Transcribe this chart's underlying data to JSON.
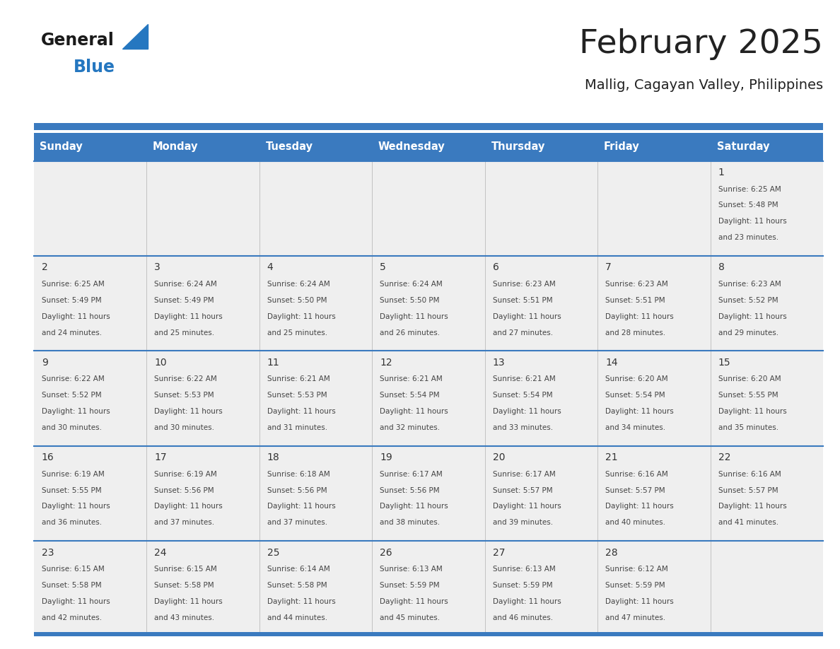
{
  "title": "February 2025",
  "subtitle": "Mallig, Cagayan Valley, Philippines",
  "days_of_week": [
    "Sunday",
    "Monday",
    "Tuesday",
    "Wednesday",
    "Thursday",
    "Friday",
    "Saturday"
  ],
  "header_bg": "#3a7abf",
  "header_text": "#ffffff",
  "row_bg": "#efefef",
  "cell_border_color": "#3a7abf",
  "day_number_color": "#333333",
  "text_color": "#444444",
  "title_color": "#222222",
  "subtitle_color": "#222222",
  "logo_general_color": "#1a1a1a",
  "logo_blue_color": "#2577c0",
  "calendar_data": [
    [
      null,
      null,
      null,
      null,
      null,
      null,
      {
        "day": 1,
        "sunrise": "6:25 AM",
        "sunset": "5:48 PM",
        "daylight": "11 hours and 23 minutes."
      }
    ],
    [
      {
        "day": 2,
        "sunrise": "6:25 AM",
        "sunset": "5:49 PM",
        "daylight": "11 hours and 24 minutes."
      },
      {
        "day": 3,
        "sunrise": "6:24 AM",
        "sunset": "5:49 PM",
        "daylight": "11 hours and 25 minutes."
      },
      {
        "day": 4,
        "sunrise": "6:24 AM",
        "sunset": "5:50 PM",
        "daylight": "11 hours and 25 minutes."
      },
      {
        "day": 5,
        "sunrise": "6:24 AM",
        "sunset": "5:50 PM",
        "daylight": "11 hours and 26 minutes."
      },
      {
        "day": 6,
        "sunrise": "6:23 AM",
        "sunset": "5:51 PM",
        "daylight": "11 hours and 27 minutes."
      },
      {
        "day": 7,
        "sunrise": "6:23 AM",
        "sunset": "5:51 PM",
        "daylight": "11 hours and 28 minutes."
      },
      {
        "day": 8,
        "sunrise": "6:23 AM",
        "sunset": "5:52 PM",
        "daylight": "11 hours and 29 minutes."
      }
    ],
    [
      {
        "day": 9,
        "sunrise": "6:22 AM",
        "sunset": "5:52 PM",
        "daylight": "11 hours and 30 minutes."
      },
      {
        "day": 10,
        "sunrise": "6:22 AM",
        "sunset": "5:53 PM",
        "daylight": "11 hours and 30 minutes."
      },
      {
        "day": 11,
        "sunrise": "6:21 AM",
        "sunset": "5:53 PM",
        "daylight": "11 hours and 31 minutes."
      },
      {
        "day": 12,
        "sunrise": "6:21 AM",
        "sunset": "5:54 PM",
        "daylight": "11 hours and 32 minutes."
      },
      {
        "day": 13,
        "sunrise": "6:21 AM",
        "sunset": "5:54 PM",
        "daylight": "11 hours and 33 minutes."
      },
      {
        "day": 14,
        "sunrise": "6:20 AM",
        "sunset": "5:54 PM",
        "daylight": "11 hours and 34 minutes."
      },
      {
        "day": 15,
        "sunrise": "6:20 AM",
        "sunset": "5:55 PM",
        "daylight": "11 hours and 35 minutes."
      }
    ],
    [
      {
        "day": 16,
        "sunrise": "6:19 AM",
        "sunset": "5:55 PM",
        "daylight": "11 hours and 36 minutes."
      },
      {
        "day": 17,
        "sunrise": "6:19 AM",
        "sunset": "5:56 PM",
        "daylight": "11 hours and 37 minutes."
      },
      {
        "day": 18,
        "sunrise": "6:18 AM",
        "sunset": "5:56 PM",
        "daylight": "11 hours and 37 minutes."
      },
      {
        "day": 19,
        "sunrise": "6:17 AM",
        "sunset": "5:56 PM",
        "daylight": "11 hours and 38 minutes."
      },
      {
        "day": 20,
        "sunrise": "6:17 AM",
        "sunset": "5:57 PM",
        "daylight": "11 hours and 39 minutes."
      },
      {
        "day": 21,
        "sunrise": "6:16 AM",
        "sunset": "5:57 PM",
        "daylight": "11 hours and 40 minutes."
      },
      {
        "day": 22,
        "sunrise": "6:16 AM",
        "sunset": "5:57 PM",
        "daylight": "11 hours and 41 minutes."
      }
    ],
    [
      {
        "day": 23,
        "sunrise": "6:15 AM",
        "sunset": "5:58 PM",
        "daylight": "11 hours and 42 minutes."
      },
      {
        "day": 24,
        "sunrise": "6:15 AM",
        "sunset": "5:58 PM",
        "daylight": "11 hours and 43 minutes."
      },
      {
        "day": 25,
        "sunrise": "6:14 AM",
        "sunset": "5:58 PM",
        "daylight": "11 hours and 44 minutes."
      },
      {
        "day": 26,
        "sunrise": "6:13 AM",
        "sunset": "5:59 PM",
        "daylight": "11 hours and 45 minutes."
      },
      {
        "day": 27,
        "sunrise": "6:13 AM",
        "sunset": "5:59 PM",
        "daylight": "11 hours and 46 minutes."
      },
      {
        "day": 28,
        "sunrise": "6:12 AM",
        "sunset": "5:59 PM",
        "daylight": "11 hours and 47 minutes."
      },
      null
    ]
  ]
}
